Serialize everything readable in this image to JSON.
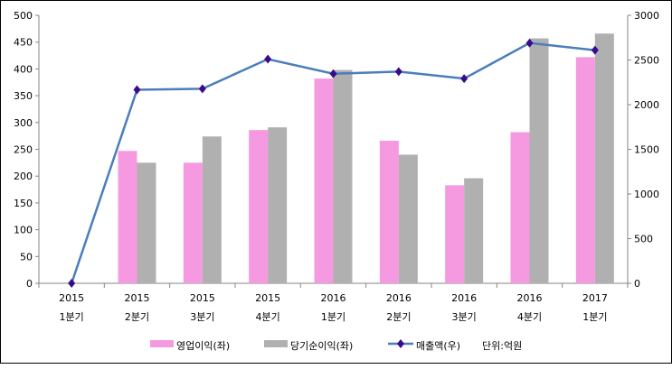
{
  "chart_data": {
    "type": "bar+line",
    "categories": [
      [
        "2015",
        "1분기"
      ],
      [
        "2015",
        "2분기"
      ],
      [
        "2015",
        "3분기"
      ],
      [
        "2015",
        "4분기"
      ],
      [
        "2016",
        "1분기"
      ],
      [
        "2016",
        "2분기"
      ],
      [
        "2016",
        "3분기"
      ],
      [
        "2016",
        "4분기"
      ],
      [
        "2017",
        "1분기"
      ]
    ],
    "series": [
      {
        "name": "영업이익(좌)",
        "type": "bar",
        "axis": "left",
        "color": "#F59AE0",
        "values": [
          0,
          247,
          225,
          286,
          382,
          266,
          183,
          282,
          422
        ]
      },
      {
        "name": "당기순이익(좌)",
        "type": "bar",
        "axis": "left",
        "color": "#B0B0B0",
        "values": [
          0,
          225,
          274,
          291,
          398,
          240,
          196,
          457,
          466
        ]
      },
      {
        "name": "매출액(우)",
        "type": "line",
        "axis": "right",
        "color": "#4A7EBB",
        "marker_color": "#3A0A8C",
        "values": [
          0,
          2167,
          2178,
          2510,
          2346,
          2370,
          2292,
          2690,
          2610
        ]
      }
    ],
    "left_axis": {
      "min": 0,
      "max": 500,
      "ticks": [
        0,
        50,
        100,
        150,
        200,
        250,
        300,
        350,
        400,
        450,
        500
      ]
    },
    "right_axis": {
      "min": 0,
      "max": 3000,
      "ticks": [
        0,
        500,
        1000,
        1500,
        2000,
        2500,
        3000
      ]
    },
    "unit_note": "단위:억원",
    "legend_position": "bottom",
    "grid": false
  }
}
